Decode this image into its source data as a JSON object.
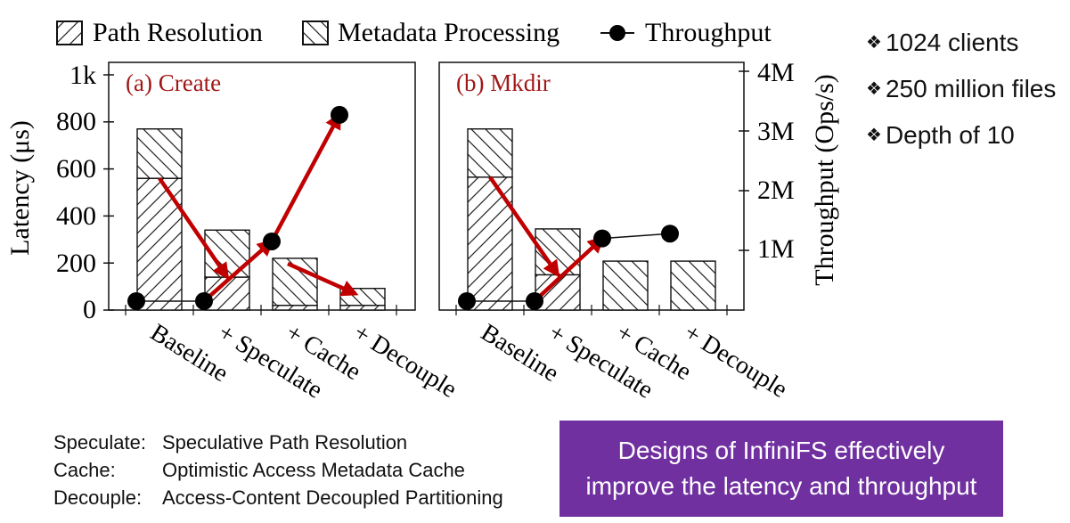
{
  "legend": {
    "path_resolution": "Path Resolution",
    "metadata_processing": "Metadata Processing",
    "throughput": "Throughput"
  },
  "axes": {
    "left_label": "Latency (μs)",
    "right_label": "Throughput (Ops/s)",
    "left_ticks": [
      "0",
      "200",
      "400",
      "600",
      "800",
      "1k"
    ],
    "right_ticks": [
      "1M",
      "2M",
      "3M",
      "4M"
    ]
  },
  "chart_data": {
    "type": "bar",
    "ylim": [
      0,
      1000
    ],
    "y2lim": [
      0,
      4000000
    ],
    "categories": [
      "Baseline",
      "+ Speculate",
      "+ Cache",
      "+ Decouple"
    ],
    "panels": [
      {
        "title": "(a) Create",
        "series": [
          {
            "name": "Path Resolution",
            "values": [
              560,
              140,
              20,
              20
            ]
          },
          {
            "name": "Metadata Processing",
            "values": [
              210,
              200,
              200,
              72
            ]
          }
        ],
        "throughput": [
          150000,
          150000,
          1150000,
          3270000
        ],
        "throughput_points_shown": [
          true,
          true,
          true,
          true
        ]
      },
      {
        "title": "(b) Mkdir",
        "series": [
          {
            "name": "Path Resolution",
            "values": [
              565,
              150,
              0,
              0
            ]
          },
          {
            "name": "Metadata Processing",
            "values": [
              205,
              195,
              208,
              208
            ]
          }
        ],
        "throughput": [
          150000,
          150000,
          1200000,
          1280000
        ],
        "throughput_points_shown": [
          true,
          true,
          true,
          true
        ]
      }
    ]
  },
  "bullets": [
    "1024 clients",
    "250 million files",
    "Depth of 10"
  ],
  "footnotes": [
    {
      "term": "Speculate:",
      "desc": "Speculative Path Resolution"
    },
    {
      "term": "Cache:",
      "desc": "Optimistic Access Metadata Cache"
    },
    {
      "term": "Decouple:",
      "desc": "Access-Content Decoupled Partitioning"
    }
  ],
  "callout": {
    "line1": "Designs of InfiniFS effectively",
    "line2": "improve the latency and throughput"
  },
  "colors": {
    "arrow": "#c00000",
    "panel_title": "#a01818",
    "callout_bg": "#7030a0",
    "marker": "#000000"
  }
}
